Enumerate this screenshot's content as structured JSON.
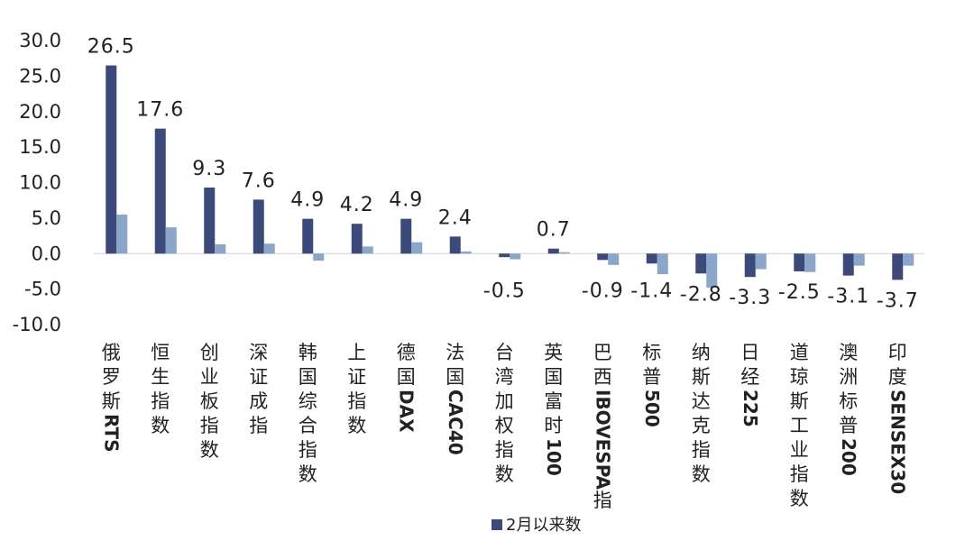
{
  "chart_data": {
    "type": "bar",
    "categories": [
      "俄罗斯RTS",
      "恒生指数",
      "创业板指数",
      "深证成指",
      "韩国综合指数",
      "上证指数",
      "德国DAX",
      "法国CAC40",
      "台湾加权指数",
      "英国富时100",
      "巴西IBOVESPA指",
      "标普500",
      "纳斯达克指数",
      "日经225",
      "道琼斯工业指数",
      "澳洲标普200",
      "印度SENSEX30"
    ],
    "series": [
      {
        "name": "2月以来数",
        "values": [
          26.5,
          17.6,
          9.3,
          7.6,
          4.9,
          4.2,
          4.9,
          2.4,
          -0.5,
          0.7,
          -0.9,
          -1.4,
          -2.8,
          -3.3,
          -2.5,
          -3.1,
          -3.7
        ],
        "labels": [
          "26.5",
          "17.6",
          "9.3",
          "7.6",
          "4.9",
          "4.2",
          "4.9",
          "2.4",
          "-0.5",
          "0.7",
          "-0.9",
          "-1.4",
          "-2.8",
          "-3.3",
          "-2.5",
          "-3.1",
          "-3.7"
        ],
        "color": "#3b4a7a"
      },
      {
        "values": [
          5.5,
          3.7,
          1.3,
          1.4,
          -1.0,
          1.0,
          1.6,
          0.3,
          -0.8,
          0.2,
          -1.6,
          -2.9,
          -4.8,
          -2.2,
          -2.6,
          -1.7,
          -1.7
        ],
        "color": "#8aa6c8"
      }
    ],
    "y_ticks": [
      "30.0",
      "25.0",
      "20.0",
      "15.0",
      "10.0",
      "5.0",
      "0.0",
      "-5.0",
      "-10.0"
    ],
    "ylim": [
      -10,
      30
    ],
    "legend": {
      "position": "bottom",
      "entries": [
        "2月以来数"
      ]
    },
    "grid": false
  }
}
